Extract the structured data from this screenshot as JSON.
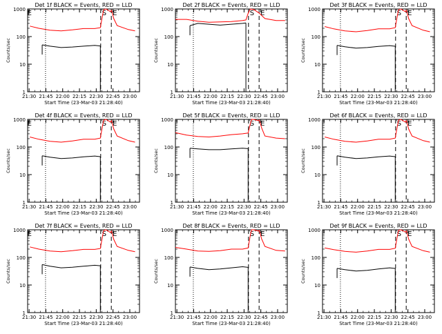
{
  "figure": {
    "colors": {
      "events": "#000000",
      "lld": "#ff0000",
      "axes": "#000000",
      "background": "#ffffff"
    }
  },
  "chart_data": [
    {
      "type": "line",
      "title": "Det 1f BLACK = Events, RED = LLD",
      "xlabel": "Start Time (23-Mar-03 21:28:40)",
      "ylabel": "Counts/sec",
      "y_scale": "log",
      "ylim": [
        1,
        1000
      ],
      "x_tick_labels": [
        "21:30",
        "21:45",
        "22:00",
        "22:15",
        "22:30",
        "22:45",
        "23:00"
      ],
      "x_ticks_min": [
        1.33,
        16.33,
        31.33,
        46.33,
        61.33,
        76.33,
        91.33
      ],
      "xlim": [
        0,
        100
      ],
      "y_tick_labels": [
        "1",
        "10",
        "100",
        "1000"
      ],
      "markers": [
        {
          "label": "S",
          "x": 65.3
        },
        {
          "label": "E",
          "x": 74.8
        },
        {
          "label": "E",
          "x": -1.5
        }
      ],
      "dotted_lines_min": [
        16.0
      ],
      "gap_min": [
        65.3,
        74.8
      ],
      "series": [
        {
          "color": "#ff0000",
          "x": [
            2,
            10,
            20,
            30,
            40,
            50,
            60,
            65,
            67,
            68,
            70,
            72,
            74,
            75,
            77,
            80,
            90,
            96
          ],
          "y": [
            240,
            200,
            170,
            160,
            175,
            195,
            195,
            210,
            600,
            950,
            1000,
            900,
            800,
            900,
            450,
            250,
            180,
            160
          ]
        },
        {
          "color": "#000000",
          "x": [
            13,
            20,
            30,
            40,
            50,
            60,
            64,
            65
          ],
          "y": [
            50,
            45,
            40,
            42,
            45,
            48,
            46,
            46
          ]
        }
      ]
    },
    {
      "type": "line",
      "title": "Det 2f BLACK = Events, RED = LLD",
      "xlabel": "Start Time (23-Mar-03 21:28:40)",
      "ylabel": "Counts/sec",
      "y_scale": "log",
      "ylim": [
        1,
        1000
      ],
      "x_tick_labels": [
        "21:30",
        "21:45",
        "22:00",
        "22:15",
        "22:30",
        "22:45",
        "23:00"
      ],
      "x_ticks_min": [
        1.33,
        16.33,
        31.33,
        46.33,
        61.33,
        76.33,
        91.33
      ],
      "xlim": [
        0,
        100
      ],
      "y_tick_labels": [
        "1",
        "10",
        "100",
        "1000"
      ],
      "markers": [
        {
          "label": "S",
          "x": 65.3
        },
        {
          "label": "E",
          "x": 74.8
        }
      ],
      "dotted_lines_min": [
        16.0
      ],
      "gap_min": [],
      "series": [
        {
          "color": "#ff0000",
          "x": [
            0,
            10,
            20,
            30,
            40,
            50,
            60,
            63,
            65,
            67,
            70,
            72,
            75,
            80,
            90,
            98
          ],
          "y": [
            420,
            420,
            360,
            330,
            340,
            350,
            380,
            400,
            700,
            1000,
            950,
            850,
            700,
            450,
            380,
            380
          ]
        },
        {
          "color": "#000000",
          "x": [
            13,
            20,
            30,
            40,
            50,
            60,
            63
          ],
          "y": [
            250,
            300,
            280,
            260,
            280,
            300,
            310
          ]
        }
      ]
    },
    {
      "type": "line",
      "title": "Det 3f BLACK = Events, RED = LLD",
      "xlabel": "Start Time (23-Mar-03 21:28:40)",
      "ylabel": "Counts/sec",
      "y_scale": "log",
      "ylim": [
        1,
        1000
      ],
      "x_tick_labels": [
        "21:30",
        "21:45",
        "22:00",
        "22:15",
        "22:30",
        "22:45",
        "23:00"
      ],
      "x_ticks_min": [
        1.33,
        16.33,
        31.33,
        46.33,
        61.33,
        76.33,
        91.33
      ],
      "xlim": [
        0,
        100
      ],
      "y_tick_labels": [
        "1",
        "10",
        "100",
        "1000"
      ],
      "markers": [
        {
          "label": "S",
          "x": 65.3
        },
        {
          "label": "E",
          "x": 74.8
        }
      ],
      "dotted_lines_min": [
        16.0
      ],
      "gap_min": [
        65.3,
        74.8
      ],
      "series": [
        {
          "color": "#ff0000",
          "x": [
            2,
            10,
            20,
            30,
            40,
            50,
            60,
            65,
            67,
            68,
            70,
            72,
            74,
            75,
            77,
            80,
            90,
            96
          ],
          "y": [
            230,
            190,
            160,
            150,
            165,
            190,
            190,
            210,
            600,
            950,
            1000,
            900,
            800,
            900,
            450,
            250,
            170,
            150
          ]
        },
        {
          "color": "#000000",
          "x": [
            13,
            20,
            30,
            40,
            50,
            60,
            64,
            65
          ],
          "y": [
            48,
            43,
            38,
            40,
            44,
            47,
            45,
            45
          ]
        }
      ]
    },
    {
      "type": "line",
      "title": "Det 4f BLACK = Events, RED = LLD",
      "xlabel": "Start Time (23-Mar-03 21:28:40)",
      "ylabel": "Counts/sec",
      "y_scale": "log",
      "ylim": [
        1,
        1000
      ],
      "x_tick_labels": [
        "21:30",
        "21:45",
        "22:00",
        "22:15",
        "22:30",
        "22:45",
        "23:00"
      ],
      "x_ticks_min": [
        1.33,
        16.33,
        31.33,
        46.33,
        61.33,
        76.33,
        91.33
      ],
      "xlim": [
        0,
        100
      ],
      "y_tick_labels": [
        "1",
        "10",
        "100",
        "1000"
      ],
      "markers": [
        {
          "label": "S",
          "x": 65.3
        },
        {
          "label": "E",
          "x": 74.8
        },
        {
          "label": "E",
          "x": -1.5
        }
      ],
      "dotted_lines_min": [
        16.0
      ],
      "gap_min": [
        65.3,
        74.8
      ],
      "series": [
        {
          "color": "#ff0000",
          "x": [
            2,
            10,
            20,
            30,
            40,
            50,
            60,
            65,
            67,
            68,
            70,
            72,
            74,
            75,
            77,
            80,
            90,
            96
          ],
          "y": [
            230,
            190,
            160,
            150,
            165,
            190,
            190,
            210,
            600,
            950,
            1000,
            900,
            800,
            900,
            450,
            250,
            170,
            150
          ]
        },
        {
          "color": "#000000",
          "x": [
            13,
            20,
            30,
            40,
            50,
            60,
            64,
            65
          ],
          "y": [
            48,
            43,
            38,
            40,
            44,
            47,
            45,
            45
          ]
        }
      ]
    },
    {
      "type": "line",
      "title": "Det 5f BLACK = Events, RED = LLD",
      "xlabel": "Start Time (23-Mar-03 21:28:40)",
      "ylabel": "Counts/sec",
      "y_scale": "log",
      "ylim": [
        1,
        1000
      ],
      "x_tick_labels": [
        "21:30",
        "21:45",
        "22:00",
        "22:15",
        "22:30",
        "22:45",
        "23:00"
      ],
      "x_ticks_min": [
        1.33,
        16.33,
        31.33,
        46.33,
        61.33,
        76.33,
        91.33
      ],
      "xlim": [
        0,
        100
      ],
      "y_tick_labels": [
        "1",
        "10",
        "100",
        "1000"
      ],
      "markers": [
        {
          "label": "S",
          "x": 65.3
        },
        {
          "label": "E",
          "x": 74.8
        }
      ],
      "dotted_lines_min": [
        16.0
      ],
      "gap_min": [
        65.3,
        74.8
      ],
      "series": [
        {
          "color": "#ff0000",
          "x": [
            0,
            10,
            20,
            30,
            40,
            50,
            60,
            65,
            67,
            68,
            70,
            72,
            74,
            75,
            77,
            80,
            90,
            98
          ],
          "y": [
            330,
            270,
            240,
            230,
            250,
            280,
            300,
            320,
            700,
            1000,
            1000,
            950,
            900,
            950,
            500,
            250,
            210,
            200
          ]
        },
        {
          "color": "#000000",
          "x": [
            13,
            20,
            30,
            40,
            50,
            60,
            64,
            65
          ],
          "y": [
            90,
            85,
            80,
            80,
            85,
            90,
            88,
            88
          ]
        }
      ]
    },
    {
      "type": "line",
      "title": "Det 6f BLACK = Events, RED = LLD",
      "xlabel": "Start Time (23-Mar-03 21:28:40)",
      "ylabel": "Counts/sec",
      "y_scale": "log",
      "ylim": [
        1,
        1000
      ],
      "x_tick_labels": [
        "21:30",
        "21:45",
        "22:00",
        "22:15",
        "22:30",
        "22:45",
        "23:00"
      ],
      "x_ticks_min": [
        1.33,
        16.33,
        31.33,
        46.33,
        61.33,
        76.33,
        91.33
      ],
      "xlim": [
        0,
        100
      ],
      "y_tick_labels": [
        "1",
        "10",
        "100",
        "1000"
      ],
      "markers": [
        {
          "label": "S",
          "x": 65.3
        },
        {
          "label": "E",
          "x": 74.8
        }
      ],
      "dotted_lines_min": [
        16.0
      ],
      "gap_min": [
        65.3,
        74.8
      ],
      "series": [
        {
          "color": "#ff0000",
          "x": [
            2,
            10,
            20,
            30,
            40,
            50,
            60,
            65,
            67,
            68,
            70,
            72,
            74,
            75,
            77,
            80,
            90,
            96
          ],
          "y": [
            230,
            190,
            160,
            150,
            165,
            190,
            190,
            210,
            600,
            950,
            1000,
            900,
            800,
            900,
            450,
            250,
            170,
            150
          ]
        },
        {
          "color": "#000000",
          "x": [
            13,
            20,
            30,
            40,
            50,
            60,
            64,
            65
          ],
          "y": [
            48,
            43,
            38,
            40,
            44,
            47,
            45,
            45
          ]
        }
      ]
    },
    {
      "type": "line",
      "title": "Det 7f BLACK = Events, RED = LLD",
      "xlabel": "Start Time (23-Mar-03 21:28:40)",
      "ylabel": "Counts/sec",
      "y_scale": "log",
      "ylim": [
        1,
        1000
      ],
      "x_tick_labels": [
        "21:30",
        "21:45",
        "22:00",
        "22:15",
        "22:30",
        "22:45",
        "23:00"
      ],
      "x_ticks_min": [
        1.33,
        16.33,
        31.33,
        46.33,
        61.33,
        76.33,
        91.33
      ],
      "xlim": [
        0,
        100
      ],
      "y_tick_labels": [
        "1",
        "10",
        "100",
        "1000"
      ],
      "markers": [
        {
          "label": "S",
          "x": 65.3
        },
        {
          "label": "E",
          "x": 74.8
        },
        {
          "label": "E",
          "x": -1.5
        }
      ],
      "dotted_lines_min": [
        16.0
      ],
      "gap_min": [
        65.3,
        74.8
      ],
      "series": [
        {
          "color": "#ff0000",
          "x": [
            2,
            10,
            20,
            30,
            40,
            50,
            60,
            65,
            67,
            68,
            70,
            72,
            74,
            75,
            77,
            80,
            90,
            96
          ],
          "y": [
            240,
            200,
            170,
            160,
            175,
            195,
            195,
            210,
            600,
            950,
            1000,
            900,
            800,
            900,
            450,
            250,
            180,
            160
          ]
        },
        {
          "color": "#000000",
          "x": [
            13,
            20,
            30,
            40,
            50,
            60,
            64,
            65
          ],
          "y": [
            55,
            48,
            42,
            44,
            48,
            52,
            50,
            50
          ]
        }
      ]
    },
    {
      "type": "line",
      "title": "Det 8f BLACK = Events, RED = LLD",
      "xlabel": "Start Time (23-Mar-03 21:28:40)",
      "ylabel": "Counts/sec",
      "y_scale": "log",
      "ylim": [
        1,
        1000
      ],
      "x_tick_labels": [
        "21:30",
        "21:45",
        "22:00",
        "22:15",
        "22:30",
        "22:45",
        "23:00"
      ],
      "x_ticks_min": [
        1.33,
        16.33,
        31.33,
        46.33,
        61.33,
        76.33,
        91.33
      ],
      "xlim": [
        0,
        100
      ],
      "y_tick_labels": [
        "1",
        "10",
        "100",
        "1000"
      ],
      "markers": [
        {
          "label": "S",
          "x": 65.3
        },
        {
          "label": "E",
          "x": 74.8
        }
      ],
      "dotted_lines_min": [
        16.0
      ],
      "gap_min": [
        65.3,
        74.8
      ],
      "series": [
        {
          "color": "#ff0000",
          "x": [
            0,
            10,
            20,
            30,
            40,
            50,
            60,
            65,
            67,
            68,
            70,
            72,
            74,
            75,
            77,
            80,
            90,
            98
          ],
          "y": [
            230,
            200,
            170,
            165,
            175,
            200,
            200,
            220,
            650,
            1000,
            1000,
            950,
            900,
            950,
            480,
            250,
            180,
            170
          ]
        },
        {
          "color": "#000000",
          "x": [
            13,
            20,
            30,
            40,
            50,
            60,
            64,
            65
          ],
          "y": [
            45,
            40,
            36,
            38,
            42,
            46,
            44,
            44
          ]
        }
      ]
    },
    {
      "type": "line",
      "title": "Det 9f BLACK = Events, RED = LLD",
      "xlabel": "Start Time (23-Mar-03 21:28:40)",
      "ylabel": "Counts/sec",
      "y_scale": "log",
      "ylim": [
        1,
        1000
      ],
      "x_tick_labels": [
        "21:30",
        "21:45",
        "22:00",
        "22:15",
        "22:30",
        "22:45",
        "23:00"
      ],
      "x_ticks_min": [
        1.33,
        16.33,
        31.33,
        46.33,
        61.33,
        76.33,
        91.33
      ],
      "xlim": [
        0,
        100
      ],
      "y_tick_labels": [
        "1",
        "10",
        "100",
        "1000"
      ],
      "markers": [
        {
          "label": "S",
          "x": 65.3
        },
        {
          "label": "E",
          "x": 74.8
        }
      ],
      "dotted_lines_min": [
        16.0
      ],
      "gap_min": [
        65.3,
        74.8
      ],
      "series": [
        {
          "color": "#ff0000",
          "x": [
            2,
            10,
            20,
            30,
            40,
            50,
            60,
            65,
            67,
            68,
            70,
            72,
            74,
            75,
            77,
            80,
            90,
            96
          ],
          "y": [
            220,
            190,
            165,
            155,
            170,
            195,
            195,
            215,
            620,
            960,
            1000,
            920,
            820,
            920,
            460,
            250,
            175,
            155
          ]
        },
        {
          "color": "#000000",
          "x": [
            13,
            20,
            30,
            40,
            50,
            60,
            64,
            65
          ],
          "y": [
            40,
            36,
            32,
            34,
            38,
            42,
            40,
            40
          ]
        }
      ]
    }
  ]
}
